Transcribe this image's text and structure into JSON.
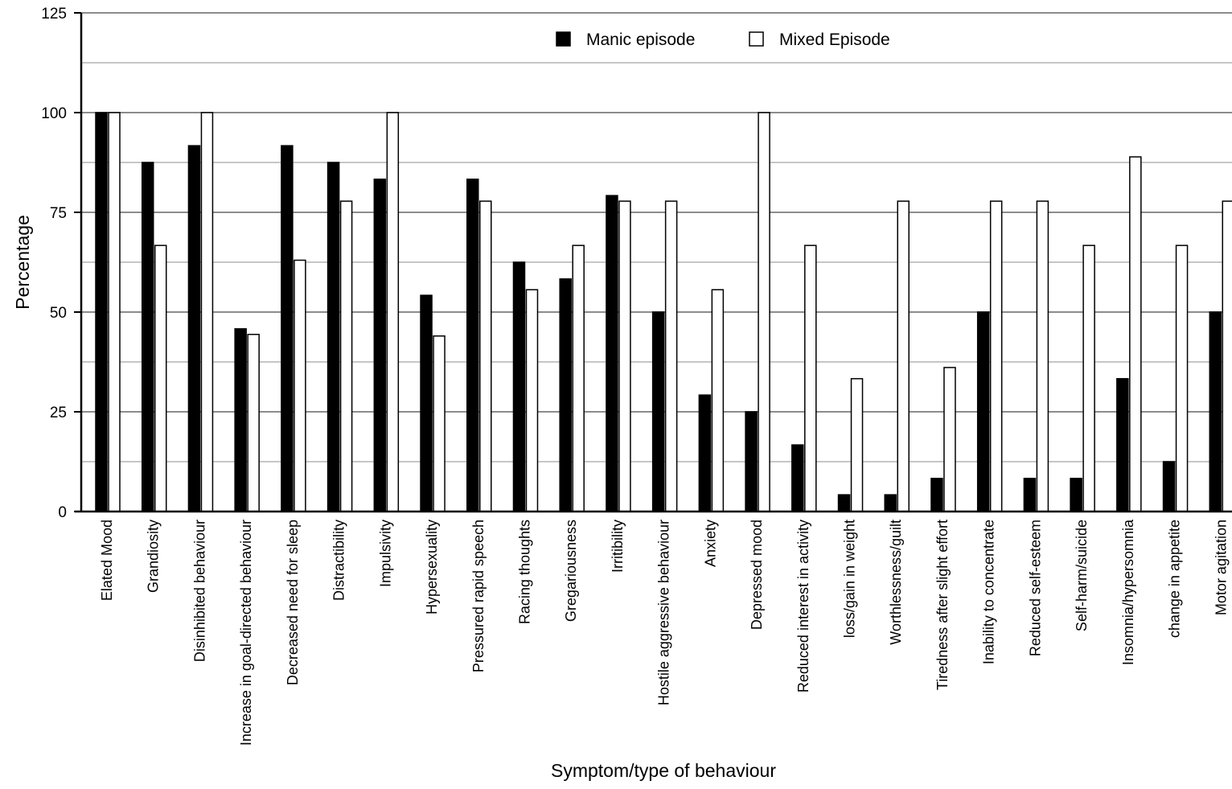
{
  "chart_data": {
    "type": "bar",
    "title": "",
    "xlabel": "Symptom/type of behaviour",
    "ylabel": "Percentage",
    "ylim": [
      0,
      125
    ],
    "yticks": [
      0,
      25,
      50,
      75,
      100,
      125
    ],
    "grid": true,
    "legend_position": "top",
    "categories": [
      "Elated Mood",
      "Grandiosity",
      "Disinhibited behaviour",
      "Increase in goal-directed behaviour",
      "Decreased need for sleep",
      "Distractibility",
      "Impulsivity",
      "Hypersexuality",
      "Pressured rapid speech",
      "Racing thoughts",
      "Gregariousness",
      "Irritibility",
      "Hostile aggressive behaviour",
      "Anxiety",
      "Depressed mood",
      "Reduced interest in activity",
      "loss/gain in weight",
      "Worthlessness/guilt",
      "Tiredness after slight effort",
      "Inability to concentrate",
      "Reduced self-esteem",
      "Self-harm/suicide",
      "Insomnia/hypersomnia",
      "change in appetite",
      "Motor agitation"
    ],
    "series": [
      {
        "name": "Manic episode",
        "color": "#000000",
        "values": [
          100,
          87.5,
          91.7,
          45.8,
          91.7,
          87.5,
          83.3,
          54.2,
          83.3,
          62.5,
          58.3,
          79.2,
          50,
          29.2,
          25,
          16.7,
          4.2,
          4.2,
          8.3,
          50,
          8.3,
          8.3,
          33.3,
          12.5,
          50
        ]
      },
      {
        "name": "Mixed Episode",
        "color": "#ffffff",
        "values": [
          100,
          66.7,
          100,
          44.4,
          63,
          77.8,
          100,
          44,
          77.8,
          55.6,
          66.7,
          77.8,
          77.8,
          55.6,
          100,
          66.7,
          33.3,
          77.8,
          36.1,
          77.8,
          77.8,
          66.7,
          88.9,
          66.7,
          77.8
        ]
      }
    ]
  }
}
